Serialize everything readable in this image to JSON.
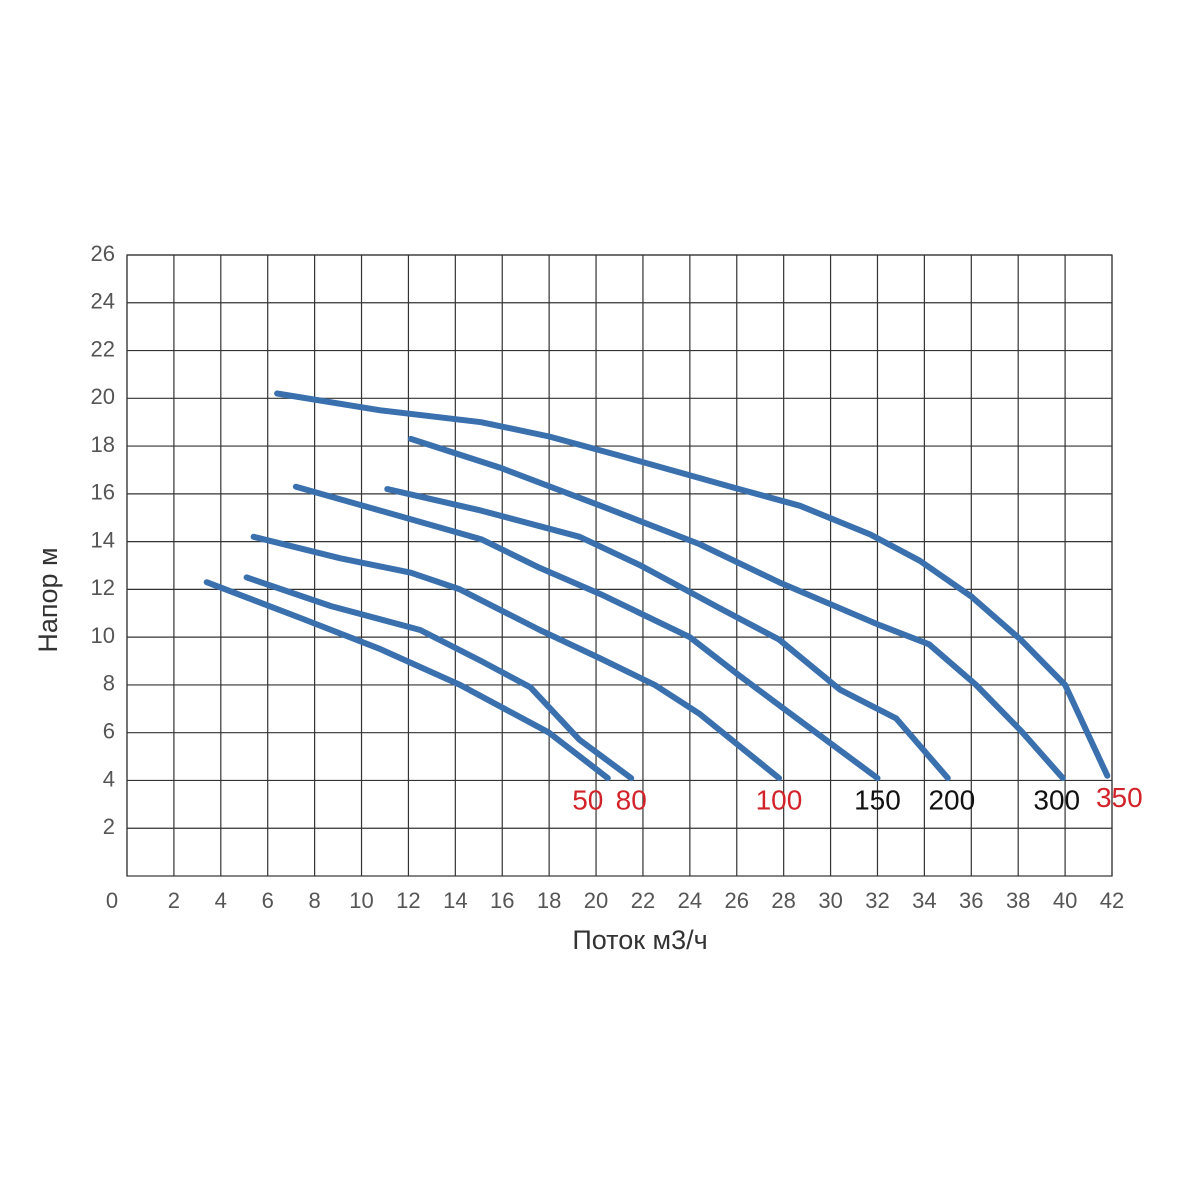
{
  "chart_data": {
    "type": "line",
    "x_label": "Поток м3/ч",
    "y_label": "Напор м",
    "xlim": [
      0,
      42
    ],
    "ylim": [
      0,
      26
    ],
    "xticks": [
      0,
      2,
      4,
      6,
      8,
      10,
      12,
      14,
      16,
      18,
      20,
      22,
      24,
      26,
      28,
      30,
      32,
      34,
      36,
      38,
      40,
      42
    ],
    "yticks": [
      2,
      4,
      6,
      8,
      10,
      12,
      14,
      16,
      18,
      20,
      22,
      24,
      26
    ],
    "grid": true,
    "series": [
      {
        "name": "50",
        "color": "#3a70ae",
        "label_color": "#d2232a",
        "x": [
          3.4,
          7.4,
          10.8,
          14.2,
          18.0,
          20.5
        ],
        "values": [
          12.3,
          10.8,
          9.5,
          8.0,
          6.0,
          4.1
        ]
      },
      {
        "name": "80",
        "color": "#3a70ae",
        "label_color": "#d2232a",
        "x": [
          5.1,
          8.7,
          12.5,
          15.1,
          17.2,
          19.3,
          21.5
        ],
        "values": [
          12.5,
          11.3,
          10.3,
          9.0,
          7.9,
          5.7,
          4.1
        ]
      },
      {
        "name": "100",
        "color": "#3a70ae",
        "label_color": "#d2232a",
        "x": [
          5.4,
          9.1,
          12.1,
          14.2,
          17.6,
          20.2,
          22.5,
          24.4,
          27.8
        ],
        "values": [
          14.2,
          13.3,
          12.7,
          12.0,
          10.3,
          9.1,
          8.0,
          6.8,
          4.1
        ]
      },
      {
        "name": "150",
        "color": "#3a70ae",
        "label_color": "#111111",
        "x": [
          7.2,
          10.8,
          15.1,
          17.6,
          20.2,
          24.0,
          26.1,
          28.7,
          32.0
        ],
        "values": [
          16.3,
          15.3,
          14.1,
          12.9,
          11.8,
          10.0,
          8.4,
          6.5,
          4.1
        ]
      },
      {
        "name": "200",
        "color": "#3a70ae",
        "label_color": "#111111",
        "x": [
          11.1,
          15.1,
          19.3,
          21.9,
          25.3,
          27.8,
          30.4,
          32.8,
          35.0
        ],
        "values": [
          16.2,
          15.3,
          14.2,
          13.0,
          11.2,
          9.9,
          7.8,
          6.6,
          4.1
        ]
      },
      {
        "name": "300",
        "color": "#3a70ae",
        "label_color": "#111111",
        "x": [
          12.1,
          15.9,
          20.2,
          24.4,
          27.8,
          32.1,
          34.2,
          36.2,
          38.1,
          39.9
        ],
        "values": [
          18.3,
          17.1,
          15.5,
          13.9,
          12.3,
          10.5,
          9.7,
          8.0,
          6.1,
          4.1
        ]
      },
      {
        "name": "350",
        "color": "#3a70ae",
        "label_color": "#d2232a",
        "x": [
          6.4,
          10.8,
          15.1,
          18.0,
          21.0,
          26.1,
          28.7,
          31.7,
          33.8,
          36.0,
          38.1,
          40.0,
          41.8
        ],
        "values": [
          20.2,
          19.5,
          19.0,
          18.4,
          17.6,
          16.2,
          15.5,
          14.3,
          13.2,
          11.7,
          9.9,
          8.0,
          4.2
        ]
      }
    ]
  }
}
